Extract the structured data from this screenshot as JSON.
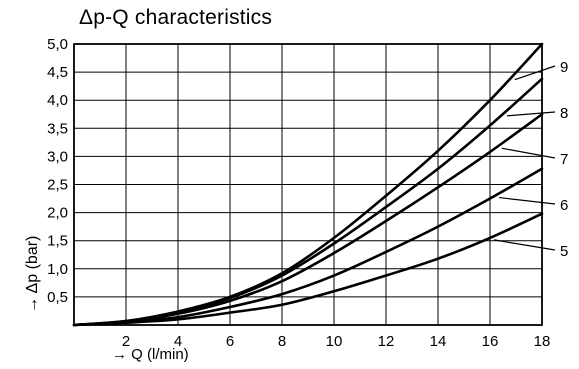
{
  "chart_data": {
    "type": "line",
    "title": "Δp-Q characteristics",
    "xlabel": "→ Q (l/min)",
    "ylabel": "→ Δp (bar)",
    "xlim": [
      0,
      18
    ],
    "ylim": [
      0,
      5.0
    ],
    "grid": true,
    "xticks": [
      "2",
      "4",
      "6",
      "8",
      "10",
      "12",
      "14",
      "16",
      "18"
    ],
    "yticks": [
      "0,5",
      "1,0",
      "1,5",
      "2,0",
      "2,5",
      "3,0",
      "3,5",
      "4,0",
      "4,5",
      "5,0"
    ],
    "x": [
      0,
      2,
      4,
      6,
      8,
      10,
      12,
      14,
      16,
      18
    ],
    "series": [
      {
        "name": "5",
        "values": [
          0,
          0.04,
          0.1,
          0.22,
          0.36,
          0.6,
          0.88,
          1.18,
          1.55,
          1.98
        ]
      },
      {
        "name": "6",
        "values": [
          0,
          0.05,
          0.14,
          0.32,
          0.55,
          0.88,
          1.3,
          1.75,
          2.25,
          2.78
        ]
      },
      {
        "name": "7",
        "values": [
          0,
          0.06,
          0.2,
          0.43,
          0.78,
          1.28,
          1.85,
          2.45,
          3.08,
          3.75
        ]
      },
      {
        "name": "8",
        "values": [
          0,
          0.07,
          0.22,
          0.48,
          0.88,
          1.45,
          2.1,
          2.78,
          3.55,
          4.38
        ]
      },
      {
        "name": "9",
        "values": [
          0,
          0.07,
          0.24,
          0.5,
          0.92,
          1.55,
          2.3,
          3.1,
          4.0,
          5.0
        ]
      }
    ]
  }
}
